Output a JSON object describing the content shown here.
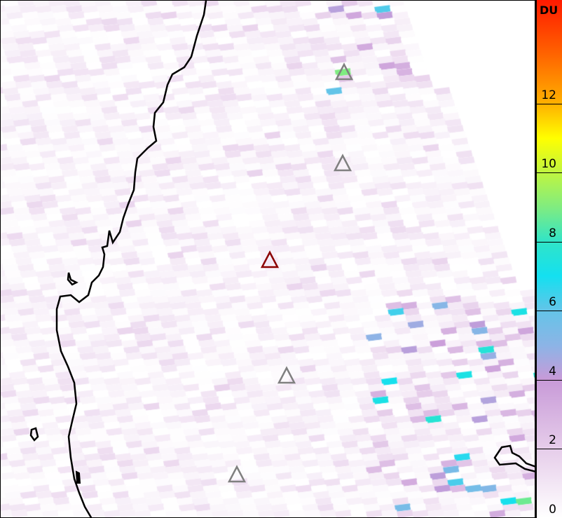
{
  "colorbar": {
    "unit": "DU",
    "ticks": [
      "0",
      "2",
      "4",
      "6",
      "8",
      "10",
      "12"
    ],
    "range": [
      0,
      15
    ],
    "colors": [
      "#ffffff",
      "#e6c8ea",
      "#c896d8",
      "#96b4e6",
      "#64c8e8",
      "#14e0f0",
      "#50e6a0",
      "#b4f060",
      "#ffff00",
      "#ffb000",
      "#ff6000",
      "#ff1a00"
    ]
  },
  "map": {
    "coastline_color": "#000000",
    "volcanoes": [
      {
        "icon": "volcano-triangle-icon",
        "color": "#808080"
      },
      {
        "icon": "volcano-triangle-icon",
        "color": "#808080"
      },
      {
        "icon": "volcano-triangle-icon",
        "color": "#8b0000",
        "highlighted": true
      },
      {
        "icon": "volcano-triangle-icon",
        "color": "#808080"
      },
      {
        "icon": "volcano-triangle-icon",
        "color": "#808080"
      }
    ]
  }
}
